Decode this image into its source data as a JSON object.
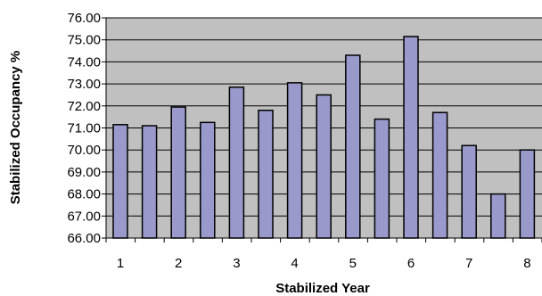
{
  "chart_data": {
    "type": "bar",
    "xlabel": "Stabilized Year",
    "ylabel": "Stabilized Occupancy %",
    "ylim": [
      66,
      76
    ],
    "ytick_step": 1,
    "ytick_format_decimals": 2,
    "grid": true,
    "legend": "none",
    "x_tick_labels": [
      "1",
      "2",
      "3",
      "4",
      "5",
      "6",
      "7",
      "8"
    ],
    "values": [
      71.15,
      71.1,
      71.95,
      71.25,
      72.85,
      71.8,
      73.05,
      72.5,
      74.3,
      71.4,
      75.15,
      71.7,
      70.2,
      68.0,
      70.0
    ],
    "colors": {
      "plot_background": "#c0c0c0",
      "bar_fill": "#9999cc",
      "bar_stroke": "#000000",
      "grid": "#000000"
    }
  }
}
